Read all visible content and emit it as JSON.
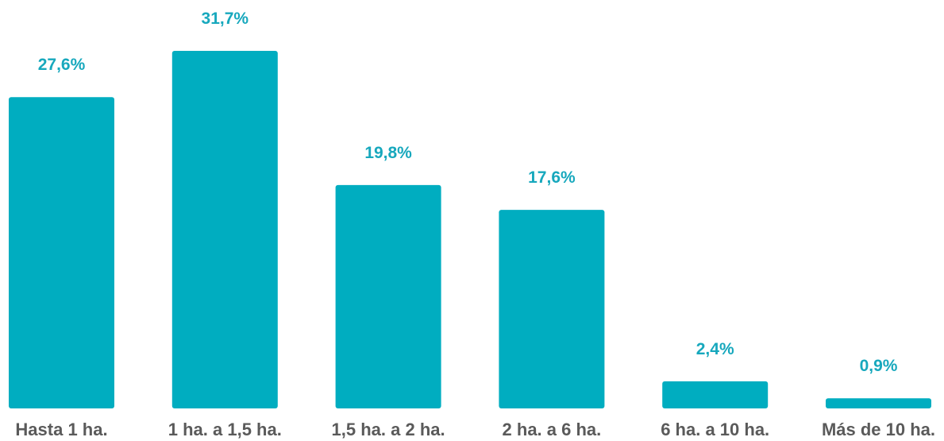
{
  "chart_data": {
    "type": "bar",
    "categories": [
      "Hasta 1 ha.",
      "1 ha. a 1,5 ha.",
      "1,5 ha. a 2 ha.",
      "2 ha. a 6 ha.",
      "6 ha. a 10 ha.",
      "Más de 10 ha."
    ],
    "values": [
      27.6,
      31.7,
      19.8,
      17.6,
      2.4,
      0.9
    ],
    "value_labels": [
      "27,6%",
      "31,7%",
      "19,8%",
      "17,6%",
      "2,4%",
      "0,9%"
    ],
    "title": "",
    "xlabel": "",
    "ylabel": "",
    "ylim": [
      0,
      31.7
    ],
    "grid": false,
    "legend": "none",
    "colors": {
      "bar": "#00adc0",
      "value_label": "#17a8bd",
      "category_label": "#5a5a5a"
    }
  }
}
